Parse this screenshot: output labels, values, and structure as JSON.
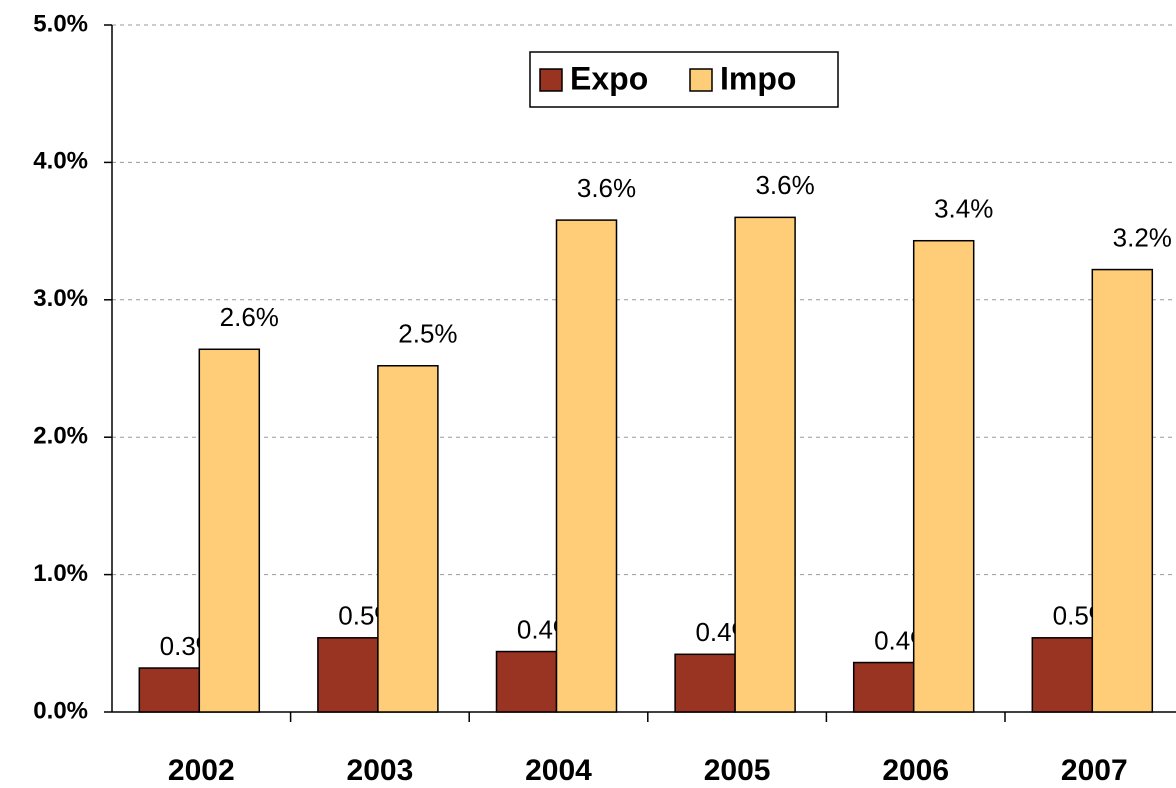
{
  "chart_data": {
    "type": "bar",
    "categories": [
      "2002",
      "2003",
      "2004",
      "2005",
      "2006",
      "2007"
    ],
    "series": [
      {
        "name": "Expo",
        "color": "#993322",
        "values": [
          0.32,
          0.54,
          0.44,
          0.42,
          0.36,
          0.54
        ],
        "value_labels": [
          "0.3%",
          "0.5%",
          "0.4%",
          "0.4%",
          "0.4%",
          "0.5%"
        ]
      },
      {
        "name": "Impo",
        "color": "#ffcc77",
        "values": [
          2.64,
          2.52,
          3.58,
          3.6,
          3.43,
          3.22
        ],
        "value_labels": [
          "2.6%",
          "2.5%",
          "3.6%",
          "3.6%",
          "3.4%",
          "3.2%"
        ]
      }
    ],
    "ylim": [
      0,
      5
    ],
    "yticks": [
      {
        "value": 0,
        "label": "0.0%"
      },
      {
        "value": 1,
        "label": "1.0%"
      },
      {
        "value": 2,
        "label": "2.0%"
      },
      {
        "value": 3,
        "label": "3.0%"
      },
      {
        "value": 4,
        "label": "4.0%"
      },
      {
        "value": 5,
        "label": "5.0%"
      }
    ],
    "grid": true,
    "legend": "top"
  }
}
